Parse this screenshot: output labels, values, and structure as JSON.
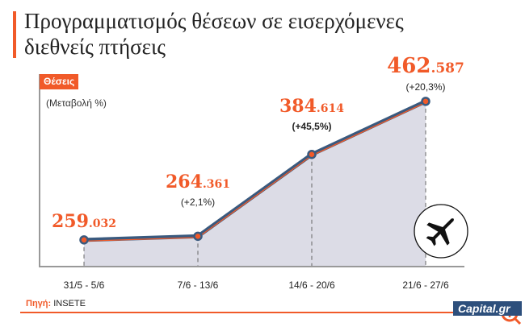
{
  "title": "Προγραμματισμός θέσεων σε εισερχόμενες διεθνείς πτήσεις",
  "source_label": "Πηγή:",
  "source_value": "INSETE",
  "logo_text": "Capital.gr",
  "colors": {
    "accent": "#f15a29",
    "line": "#3a5a7f",
    "area": "#dcdce6"
  },
  "chart_data": {
    "type": "area",
    "title": "Προγραμματισμός θέσεων σε εισερχόμενες διεθνείς πτήσεις",
    "ylabel": "Θέσεις",
    "ysublabel": "(Μεταβολή %)",
    "categories": [
      "31/5 - 5/6",
      "7/6 - 13/6",
      "14/6 - 20/6",
      "21/6 - 27/6"
    ],
    "values": [
      259032,
      264361,
      384614,
      462587
    ],
    "value_labels": [
      [
        "259",
        ".032"
      ],
      [
        "264",
        ".361"
      ],
      [
        "384",
        ".614"
      ],
      [
        "462",
        ".587"
      ]
    ],
    "changes": [
      "",
      "(+2,1%)",
      "(+45,5%)",
      "(+20,3%)"
    ],
    "ylim": [
      221000,
      500000
    ],
    "grid": false
  }
}
